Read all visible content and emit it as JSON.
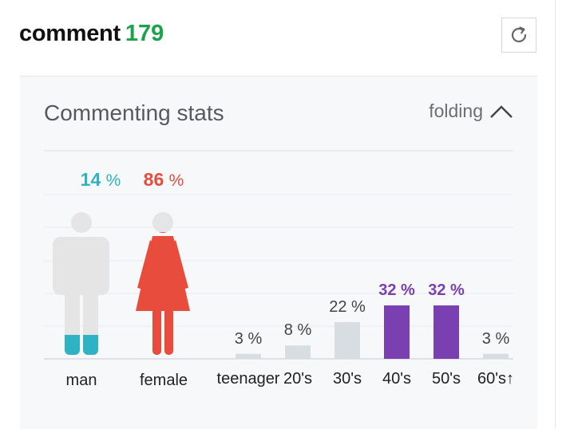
{
  "header": {
    "title": "comment",
    "count": "179"
  },
  "refresh_icon": "refresh-icon",
  "panel": {
    "title": "Commenting stats",
    "fold_label": "folding",
    "fold_icon": "chevron-up-icon"
  },
  "colors": {
    "man": "#2fb3c4",
    "female": "#e84c3d",
    "age_highlight": "#7a3fb0",
    "age_default": "#d8dde2",
    "figure_gray": "#e5e5e5"
  },
  "gender": [
    {
      "key": "man",
      "label": "man",
      "percent": 14,
      "percent_text": "14"
    },
    {
      "key": "female",
      "label": "female",
      "percent": 86,
      "percent_text": "86"
    }
  ],
  "unit": "%",
  "chart_data": {
    "type": "bar",
    "categories": [
      "teenager",
      "20's",
      "30's",
      "40's",
      "50's",
      "60's↑"
    ],
    "values": [
      3,
      8,
      22,
      32,
      32,
      3
    ],
    "value_labels": [
      "3",
      "8",
      "22",
      "32",
      "32",
      "3"
    ],
    "highlighted": [
      false,
      false,
      false,
      true,
      true,
      false
    ],
    "ylim": [
      0,
      32
    ],
    "grid": true,
    "xlabel": "",
    "ylabel": "",
    "title": ""
  }
}
